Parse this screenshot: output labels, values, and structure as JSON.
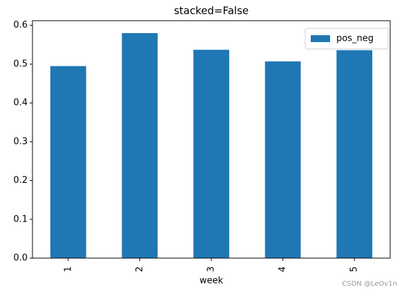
{
  "chart_data": {
    "type": "bar",
    "title": "stacked=False",
    "x_label": "week",
    "categories": [
      "1",
      "2",
      "3",
      "4",
      "5"
    ],
    "series": [
      {
        "name": "pos_neg",
        "color": "#1f77b4",
        "values": [
          0.495,
          0.58,
          0.537,
          0.507,
          0.536
        ]
      }
    ],
    "ylim": [
      0,
      0.612
    ],
    "yticks": [
      {
        "value": 0,
        "label": "0.0"
      },
      0.1,
      0.2,
      0.3,
      0.4,
      0.5,
      0.6
    ],
    "legend": "upper right",
    "watermark": "CSDN @LeOv1n"
  }
}
